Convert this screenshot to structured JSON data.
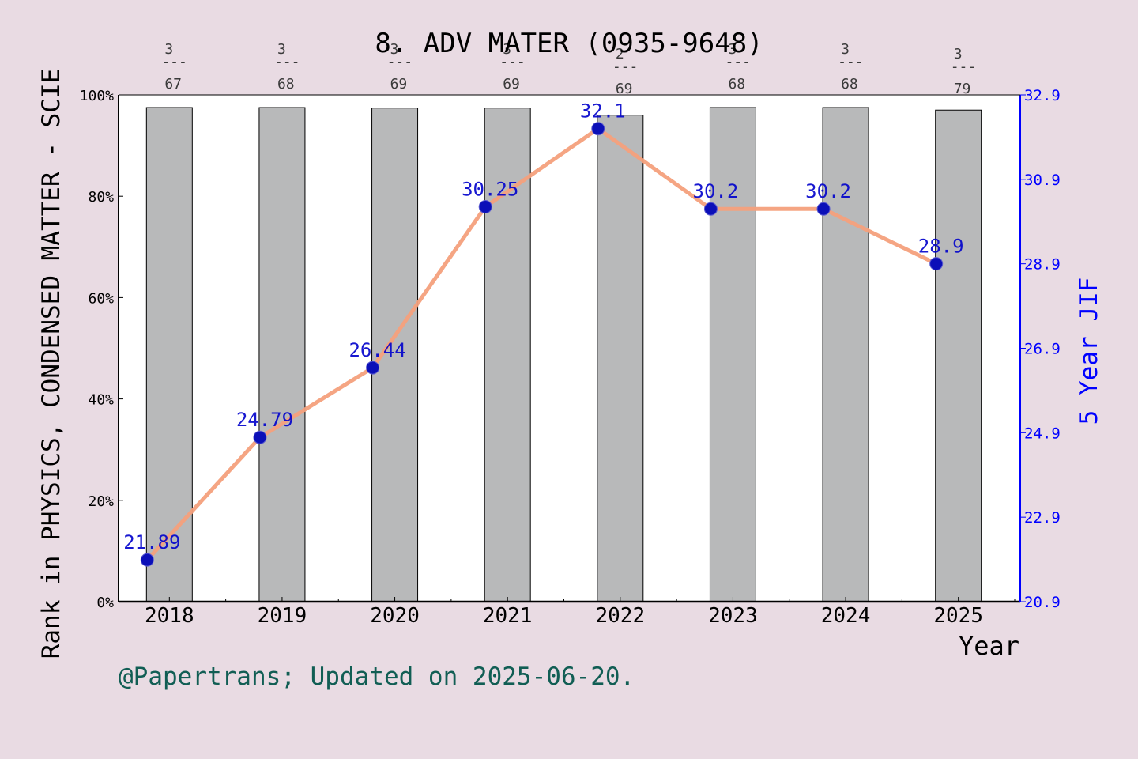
{
  "chart_data": {
    "type": "bar",
    "title": "8. ADV MATER (0935-9648)",
    "xlabel": "Year",
    "ylabel": "Rank in PHYSICS, CONDENSED MATTER - SCIE",
    "y2label": "5 Year JIF",
    "categories": [
      "2018",
      "2019",
      "2020",
      "2021",
      "2022",
      "2023",
      "2024",
      "2025"
    ],
    "rank_fraction_labels": [
      {
        "rank": "3",
        "sep": "---",
        "total": "67"
      },
      {
        "rank": "3",
        "sep": "---",
        "total": "68"
      },
      {
        "rank": "3",
        "sep": "---",
        "total": "69"
      },
      {
        "rank": "3",
        "sep": "---",
        "total": "69"
      },
      {
        "rank": "2",
        "sep": "---",
        "total": "69"
      },
      {
        "rank": "3",
        "sep": "---",
        "total": "68"
      },
      {
        "rank": "3",
        "sep": "---",
        "total": "68"
      },
      {
        "rank": "3",
        "sep": "---",
        "total": "79"
      }
    ],
    "series": [
      {
        "type": "bar",
        "axis": "left",
        "values": [
          97.5,
          97.5,
          97.4,
          97.4,
          96.0,
          97.5,
          97.5,
          97.0
        ]
      },
      {
        "type": "line",
        "axis": "right",
        "values": [
          21.89,
          24.79,
          26.44,
          30.25,
          32.1,
          30.2,
          30.2,
          28.9
        ],
        "labels": [
          "21.89",
          "24.79",
          "26.44",
          "30.25",
          "32.1",
          "30.2",
          "30.2",
          "28.9"
        ]
      }
    ],
    "ylim": [
      0,
      100
    ],
    "yticks": [
      "0%",
      "20%",
      "40%",
      "60%",
      "80%",
      "100%"
    ],
    "y2lim": [
      20.9,
      32.9
    ],
    "y2ticks": [
      "20.9",
      "22.9",
      "24.9",
      "26.9",
      "28.9",
      "30.9",
      "32.9"
    ],
    "grid": false,
    "colors": {
      "bar_fill": "#b8b9ba",
      "line": "#f4a07c",
      "marker": "#0b0fb8",
      "data_label": "#0000cc",
      "right_axis": "#0000ff",
      "background": "#e9dbe3",
      "plot_bg": "#ffffff",
      "footer": "#115e54"
    }
  },
  "footer": {
    "text": "@Papertrans; Updated on 2025-06-20."
  }
}
